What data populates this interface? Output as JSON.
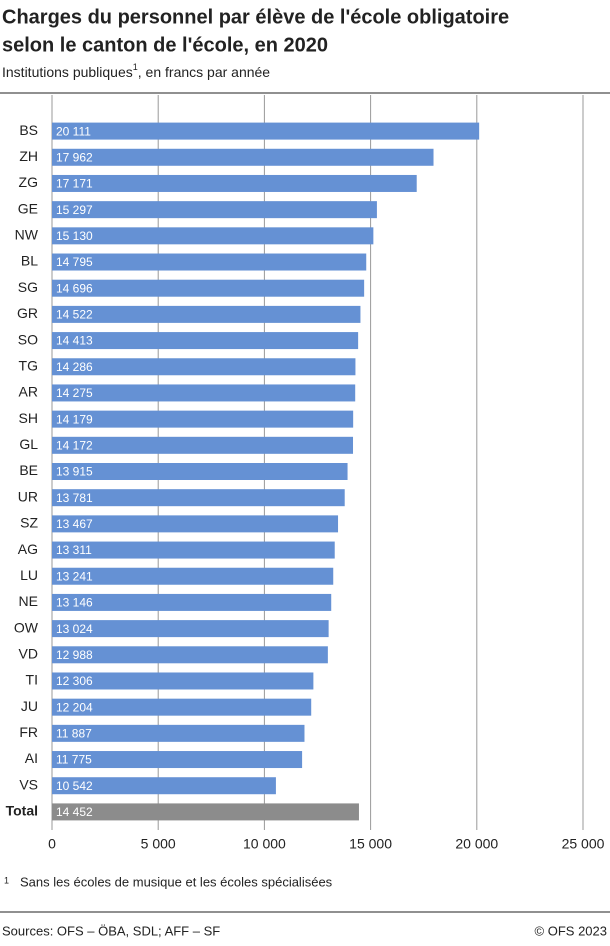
{
  "chart_data": {
    "type": "barh",
    "title": [
      "Charges du personnel par élève de l'école obligatoire",
      "selon le canton de l'école, en 2020"
    ],
    "subtitle": {
      "text": "Institutions publiques",
      "note_marker": "1",
      "rest": ", en francs par année"
    },
    "categories": [
      "BS",
      "ZH",
      "ZG",
      "GE",
      "NW",
      "BL",
      "SG",
      "GR",
      "SO",
      "TG",
      "AR",
      "SH",
      "GL",
      "BE",
      "UR",
      "SZ",
      "AG",
      "LU",
      "NE",
      "OW",
      "VD",
      "TI",
      "JU",
      "FR",
      "AI",
      "VS",
      "Total"
    ],
    "values": [
      20111,
      17962,
      17171,
      15297,
      15130,
      14795,
      14696,
      14522,
      14413,
      14286,
      14275,
      14179,
      14172,
      13915,
      13781,
      13467,
      13311,
      13241,
      13146,
      13024,
      12988,
      12306,
      12204,
      11887,
      11775,
      10542,
      14452
    ],
    "value_labels": [
      "20 111",
      "17 962",
      "17 171",
      "15 297",
      "15 130",
      "14 795",
      "14 696",
      "14 522",
      "14 413",
      "14 286",
      "14 275",
      "14 179",
      "14 172",
      "13 915",
      "13 781",
      "13 467",
      "13 311",
      "13 241",
      "13 146",
      "13 024",
      "12 988",
      "12 306",
      "12 204",
      "11 887",
      "11 775",
      "10 542",
      "14 452"
    ],
    "colors": [
      "#6591d4",
      "#6591d4",
      "#6591d4",
      "#6591d4",
      "#6591d4",
      "#6591d4",
      "#6591d4",
      "#6591d4",
      "#6591d4",
      "#6591d4",
      "#6591d4",
      "#6591d4",
      "#6591d4",
      "#6591d4",
      "#6591d4",
      "#6591d4",
      "#6591d4",
      "#6591d4",
      "#6591d4",
      "#6591d4",
      "#6591d4",
      "#6591d4",
      "#6591d4",
      "#6591d4",
      "#6591d4",
      "#6591d4",
      "#8c8c8c"
    ],
    "xlim": [
      0,
      25000
    ],
    "xticks": [
      0,
      {
        "value": 5000,
        "label": "5 000"
      },
      {
        "value": 10000,
        "label": "10 000"
      },
      {
        "value": 15000,
        "label": "15 000"
      },
      {
        "value": 20000,
        "label": "20 000"
      },
      {
        "value": 25000,
        "label": "25 000"
      }
    ],
    "grid": true,
    "footnote": {
      "marker": "1",
      "text": "Sans les écoles de musique et les écoles spécialisées"
    },
    "source": "Sources: OFS – ÖBA, SDL; AFF – SF",
    "copyright": "© OFS 2023"
  }
}
